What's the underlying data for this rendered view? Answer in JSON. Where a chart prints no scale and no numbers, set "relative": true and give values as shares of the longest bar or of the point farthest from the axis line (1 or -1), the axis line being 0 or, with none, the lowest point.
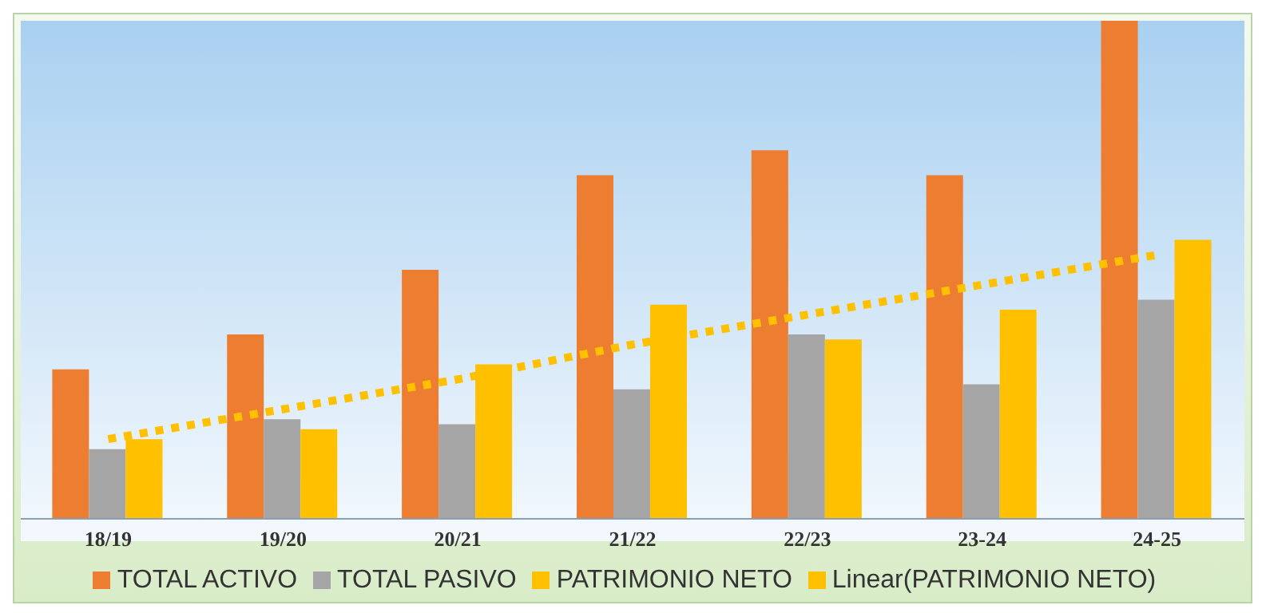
{
  "chart_data": {
    "type": "bar",
    "relative": true,
    "categories": [
      "18/19",
      "19/20",
      "20/21",
      "21/22",
      "22/23",
      "23-24",
      "24-25"
    ],
    "series": [
      {
        "name": "TOTAL ACTIVO",
        "color": "#ed7d31",
        "values": [
          0.3,
          0.37,
          0.5,
          0.69,
          0.74,
          0.69,
          1
        ]
      },
      {
        "name": "TOTAL PASIVO",
        "color": "#a5a5a5",
        "values": [
          0.14,
          0.2,
          0.19,
          0.26,
          0.37,
          0.27,
          0.44
        ]
      },
      {
        "name": "PATRIMONIO NETO",
        "color": "#ffc000",
        "values": [
          0.16,
          0.18,
          0.31,
          0.43,
          0.36,
          0.42,
          0.56
        ]
      },
      {
        "name": "Linear(PATRIMONIO NETO)",
        "type": "line",
        "color": "#ffc000",
        "line_style": "dotted",
        "values": [
          0.16,
          0.22,
          0.28,
          0.35,
          0.41,
          0.47,
          0.53
        ]
      }
    ],
    "legend": "bottom"
  }
}
